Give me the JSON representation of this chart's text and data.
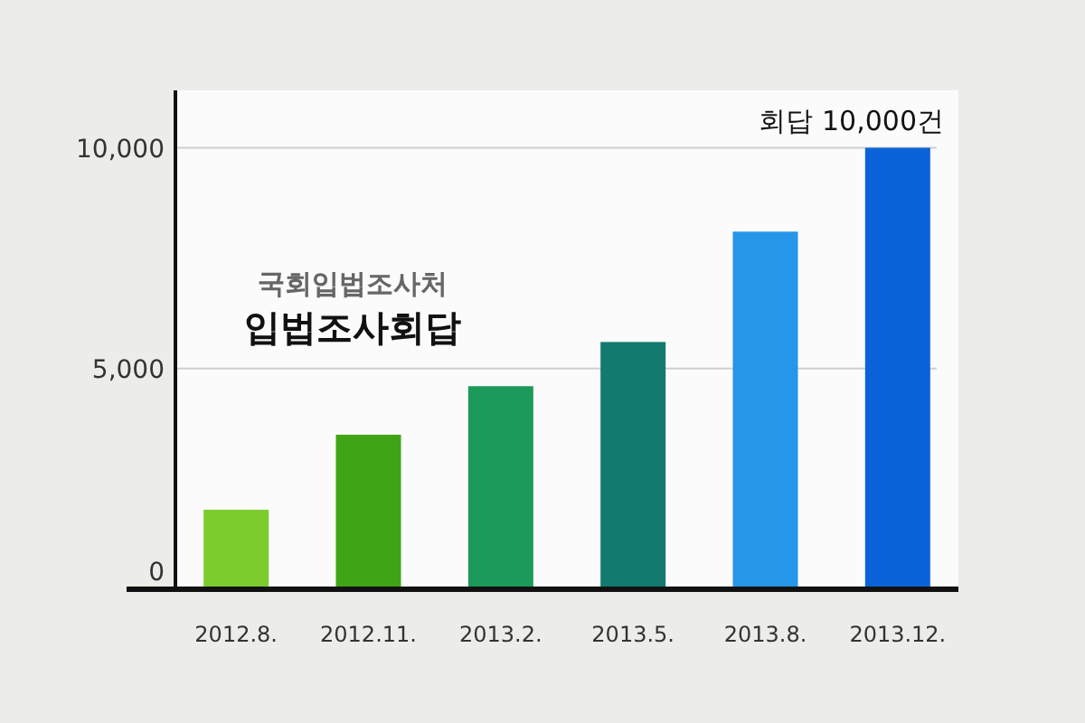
{
  "chart_data": {
    "type": "bar",
    "title": "입법조사회답",
    "subtitle": "국회입법조사처",
    "categories": [
      "2012.8.",
      "2012.11.",
      "2013.2.",
      "2013.5.",
      "2013.8.",
      "2013.12."
    ],
    "values": [
      1800,
      3500,
      4600,
      5600,
      8100,
      10000
    ],
    "colors": [
      "#7ccc2e",
      "#3fa516",
      "#1b9a5a",
      "#137a70",
      "#2596e8",
      "#0a63d8"
    ],
    "ylim": [
      0,
      11300
    ],
    "yticks": [
      {
        "value": 0,
        "label": "0"
      },
      {
        "value": 5000,
        "label": "5,000"
      },
      {
        "value": 10000,
        "label": "10,000"
      }
    ],
    "grid": "y",
    "annotations": [
      {
        "text": "회답 10,000건",
        "x": "2013.12.",
        "y": 10000
      }
    ]
  }
}
